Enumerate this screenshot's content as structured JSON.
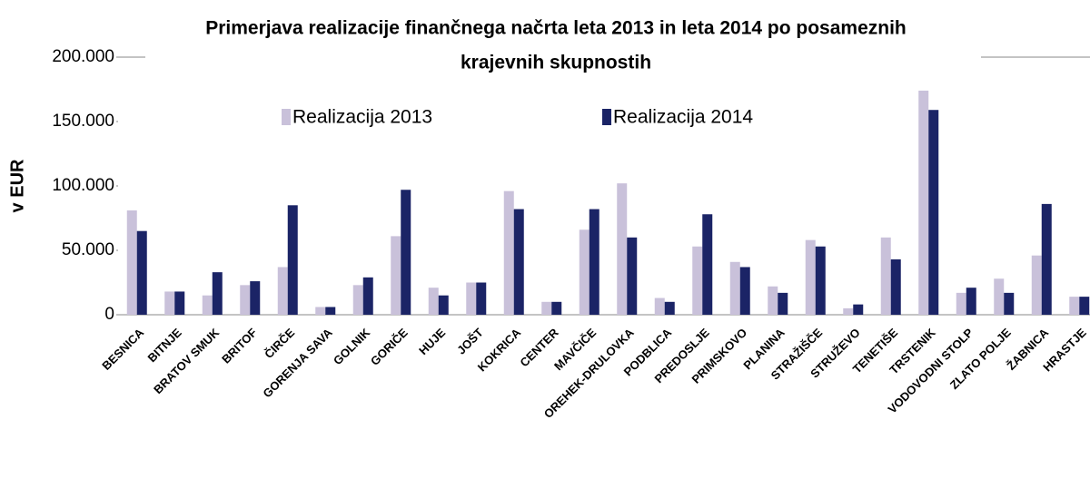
{
  "chart_data": {
    "type": "bar",
    "title": [
      "Primerjava realizacije finančnega načrta leta 2013 in leta 2014 po posameznih",
      "krajevnih skupnostih"
    ],
    "y_label": "v EUR",
    "categories": [
      "BESNICA",
      "BITNJE",
      "BRATOV SMUK",
      "BRITOF",
      "ČIRČE",
      "GORENJA SAVA",
      "GOLNIK",
      "GORIČE",
      "HUJE",
      "JOŠT",
      "KOKRICA",
      "CENTER",
      "MAVČIČE",
      "OREHEK-DRULOVKA",
      "PODBLICA",
      "PREDOSLJE",
      "PRIMSKOVO",
      "PLANINA",
      "STRAŽIŠČE",
      "STRUŽEVO",
      "TENETIŠE",
      "TRSTENIK",
      "VODOVODNI STOLP",
      "ZLATO POLJE",
      "ŽABNICA",
      "HRASTJE"
    ],
    "series": [
      {
        "name": "Realizacija 2013",
        "color": "#c9c1da",
        "values": [
          81000,
          18000,
          15000,
          23000,
          37000,
          6000,
          23000,
          61000,
          21000,
          25000,
          96000,
          10000,
          66000,
          102000,
          13000,
          53000,
          41000,
          22000,
          58000,
          5000,
          60000,
          174000,
          17000,
          28000,
          46000,
          14000
        ]
      },
      {
        "name": "Realizacija 2014",
        "color": "#1b2466",
        "values": [
          65000,
          18000,
          33000,
          26000,
          85000,
          6000,
          29000,
          97000,
          15000,
          25000,
          82000,
          10000,
          82000,
          60000,
          10000,
          78000,
          37000,
          17000,
          53000,
          8000,
          43000,
          159000,
          21000,
          17000,
          86000,
          14000
        ]
      }
    ],
    "ylim": [
      0,
      200000
    ],
    "yticks": [
      0,
      {
        "value": 50000,
        "label": "50.000"
      },
      {
        "value": 100000,
        "label": "100.000"
      },
      {
        "value": 150000,
        "label": "150.000"
      },
      {
        "value": 200000,
        "label": "200.000"
      }
    ],
    "grid": false
  }
}
